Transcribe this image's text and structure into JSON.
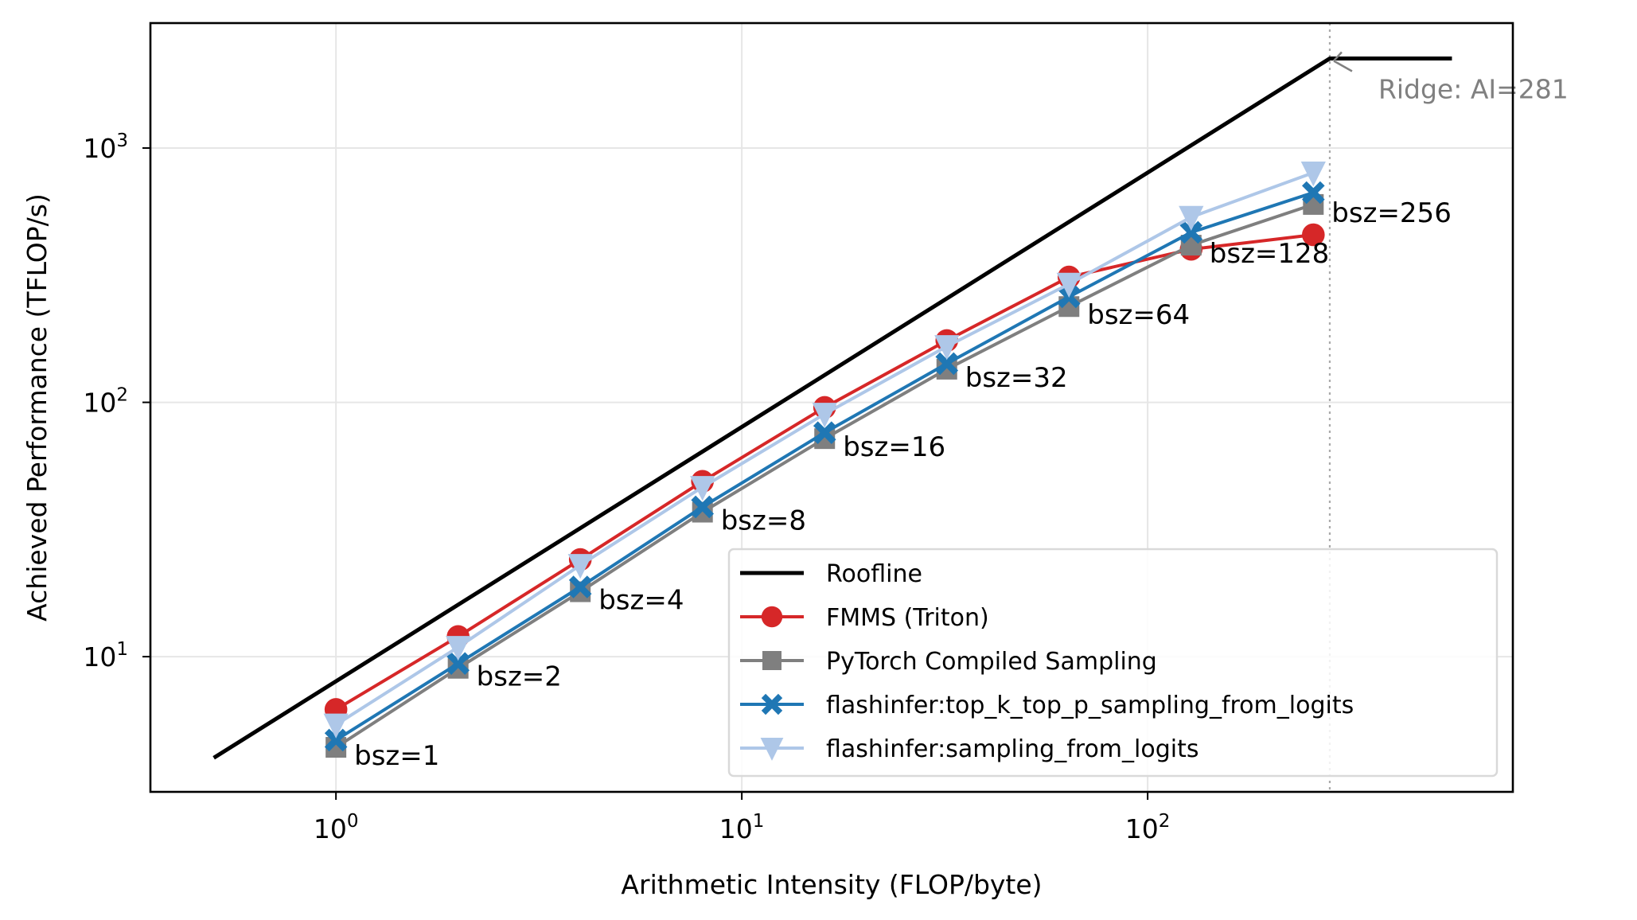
{
  "chart_data": {
    "type": "line",
    "title": "",
    "xlabel": "Arithmetic Intensity (FLOP/byte)",
    "ylabel": "Achieved Performance (TFLOP/s)",
    "xscale": "log",
    "yscale": "log",
    "xlim": [
      0.349,
      794
    ],
    "ylim": [
      2.94,
      3100
    ],
    "grid": true,
    "x_ticks": [
      {
        "value": 1,
        "base": "10",
        "exp": "0"
      },
      {
        "value": 10,
        "base": "10",
        "exp": "1"
      },
      {
        "value": 100,
        "base": "10",
        "exp": "2"
      }
    ],
    "y_ticks": [
      {
        "value": 10,
        "base": "10",
        "exp": "1"
      },
      {
        "value": 100,
        "base": "10",
        "exp": "2"
      },
      {
        "value": 1000,
        "base": "10",
        "exp": "3"
      }
    ],
    "roofline": {
      "name": "Roofline",
      "color": "#000000",
      "x": [
        0.5,
        281,
        562
      ],
      "y": [
        4.0,
        2250,
        2250
      ]
    },
    "ridge": {
      "ai": 281,
      "annotation": "Ridge: AI=281",
      "color": "#808080"
    },
    "x": [
      1,
      2,
      4,
      8,
      16,
      32,
      64,
      128,
      256
    ],
    "point_labels": [
      "bsz=1",
      "bsz=2",
      "bsz=4",
      "bsz=8",
      "bsz=16",
      "bsz=32",
      "bsz=64",
      "bsz=128",
      "bsz=256"
    ],
    "label_series": "PyTorch Compiled Sampling",
    "series": [
      {
        "name": "FMMS (Triton)",
        "color": "#d62728",
        "marker": "circle",
        "values": [
          6.2,
          12.0,
          24.1,
          48.9,
          95.5,
          175,
          311,
          400,
          456
        ]
      },
      {
        "name": "PyTorch Compiled Sampling",
        "color": "#7f7f7f",
        "marker": "square",
        "values": [
          4.4,
          9.0,
          18.0,
          37.0,
          72,
          135,
          238,
          415,
          600
        ]
      },
      {
        "name": "flashinfer:top_k_top_p_sampling_from_logits",
        "color": "#1f77b4",
        "marker": "x",
        "values": [
          4.7,
          9.4,
          18.8,
          38.8,
          76,
          142,
          260,
          466,
          668
        ]
      },
      {
        "name": "flashinfer:sampling_from_logits",
        "color": "#aec7e8",
        "marker": "triangle-down",
        "values": [
          5.4,
          10.9,
          22.9,
          46.4,
          90,
          166,
          292,
          535,
          800
        ]
      }
    ],
    "legend": {
      "placement": "lower-right",
      "entries": [
        "Roofline",
        "FMMS (Triton)",
        "PyTorch Compiled Sampling",
        "flashinfer:top_k_top_p_sampling_from_logits",
        "flashinfer:sampling_from_logits"
      ]
    }
  }
}
